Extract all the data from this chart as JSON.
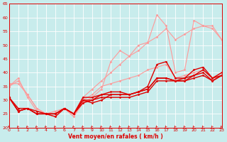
{
  "xlabel": "Vent moyen/en rafales ( km/h )",
  "xlim": [
    0,
    23
  ],
  "ylim": [
    20,
    65
  ],
  "yticks": [
    20,
    25,
    30,
    35,
    40,
    45,
    50,
    55,
    60,
    65
  ],
  "xticks": [
    0,
    1,
    2,
    3,
    4,
    5,
    6,
    7,
    8,
    9,
    10,
    11,
    12,
    13,
    14,
    15,
    16,
    17,
    18,
    19,
    20,
    21,
    22,
    23
  ],
  "bg_color": "#c8ecec",
  "grid_color": "#ffffff",
  "series": [
    {
      "x": [
        0,
        1,
        2,
        3,
        4,
        5,
        6,
        7,
        8,
        9,
        10,
        11,
        12,
        13,
        14,
        15,
        16,
        17,
        18,
        19,
        20,
        21,
        22,
        23
      ],
      "y": [
        35,
        38,
        31,
        26,
        25,
        25,
        27,
        24,
        30,
        32,
        35,
        36,
        37,
        38,
        39,
        41,
        42,
        43,
        38,
        39,
        40,
        41,
        38,
        40
      ],
      "color": "#ff9999",
      "lw": 0.8
    },
    {
      "x": [
        0,
        1,
        2,
        3,
        4,
        5,
        6,
        7,
        8,
        9,
        10,
        11,
        12,
        13,
        14,
        15,
        16,
        17,
        18,
        19,
        20,
        21,
        22,
        23
      ],
      "y": [
        35,
        37,
        32,
        27,
        25,
        26,
        27,
        25,
        31,
        34,
        37,
        40,
        43,
        46,
        48,
        51,
        53,
        56,
        52,
        54,
        56,
        57,
        56,
        52
      ],
      "color": "#ff9999",
      "lw": 0.8
    },
    {
      "x": [
        0,
        1,
        2,
        3,
        4,
        5,
        6,
        7,
        8,
        9,
        10,
        11,
        12,
        13,
        14,
        15,
        16,
        17,
        18,
        19,
        20,
        21,
        22,
        23
      ],
      "y": [
        36,
        36,
        32,
        27,
        25,
        24,
        27,
        24,
        29,
        31,
        34,
        44,
        48,
        46,
        50,
        51,
        61,
        57,
        40,
        41,
        59,
        57,
        57,
        52
      ],
      "color": "#ff9999",
      "lw": 0.8
    },
    {
      "x": [
        0,
        1,
        2,
        3,
        4,
        5,
        6,
        7,
        8,
        9,
        10,
        11,
        12,
        13,
        14,
        15,
        16,
        17,
        18,
        19,
        20,
        21,
        22,
        23
      ],
      "y": [
        31,
        27,
        27,
        25,
        25,
        25,
        27,
        25,
        31,
        31,
        32,
        32,
        32,
        32,
        33,
        34,
        38,
        38,
        37,
        38,
        39,
        41,
        38,
        39
      ],
      "color": "#dd0000",
      "lw": 1.0
    },
    {
      "x": [
        0,
        1,
        2,
        3,
        4,
        5,
        6,
        7,
        8,
        9,
        10,
        11,
        12,
        13,
        14,
        15,
        16,
        17,
        18,
        19,
        20,
        21,
        22,
        23
      ],
      "y": [
        31,
        26,
        27,
        25,
        25,
        24,
        27,
        25,
        30,
        30,
        32,
        33,
        33,
        32,
        33,
        35,
        43,
        44,
        38,
        38,
        41,
        42,
        38,
        40
      ],
      "color": "#dd0000",
      "lw": 1.0
    },
    {
      "x": [
        0,
        1,
        2,
        3,
        4,
        5,
        6,
        7,
        8,
        9,
        10,
        11,
        12,
        13,
        14,
        15,
        16,
        17,
        18,
        19,
        20,
        21,
        22,
        23
      ],
      "y": [
        31,
        26,
        27,
        26,
        25,
        25,
        27,
        25,
        30,
        29,
        30,
        32,
        32,
        32,
        33,
        34,
        38,
        38,
        37,
        37,
        39,
        40,
        37,
        39
      ],
      "color": "#dd0000",
      "lw": 1.0
    },
    {
      "x": [
        0,
        1,
        2,
        3,
        4,
        5,
        6,
        7,
        8,
        9,
        10,
        11,
        12,
        13,
        14,
        15,
        16,
        17,
        18,
        19,
        20,
        21,
        22,
        23
      ],
      "y": [
        31,
        26,
        27,
        25,
        25,
        25,
        27,
        25,
        29,
        30,
        31,
        31,
        31,
        31,
        32,
        33,
        37,
        37,
        37,
        37,
        38,
        39,
        37,
        39
      ],
      "color": "#dd0000",
      "lw": 1.0
    }
  ],
  "marker_color_light": "#ff9999",
  "marker_color_dark": "#dd0000",
  "tick_color": "#dd0000",
  "spine_color": "#dd0000"
}
